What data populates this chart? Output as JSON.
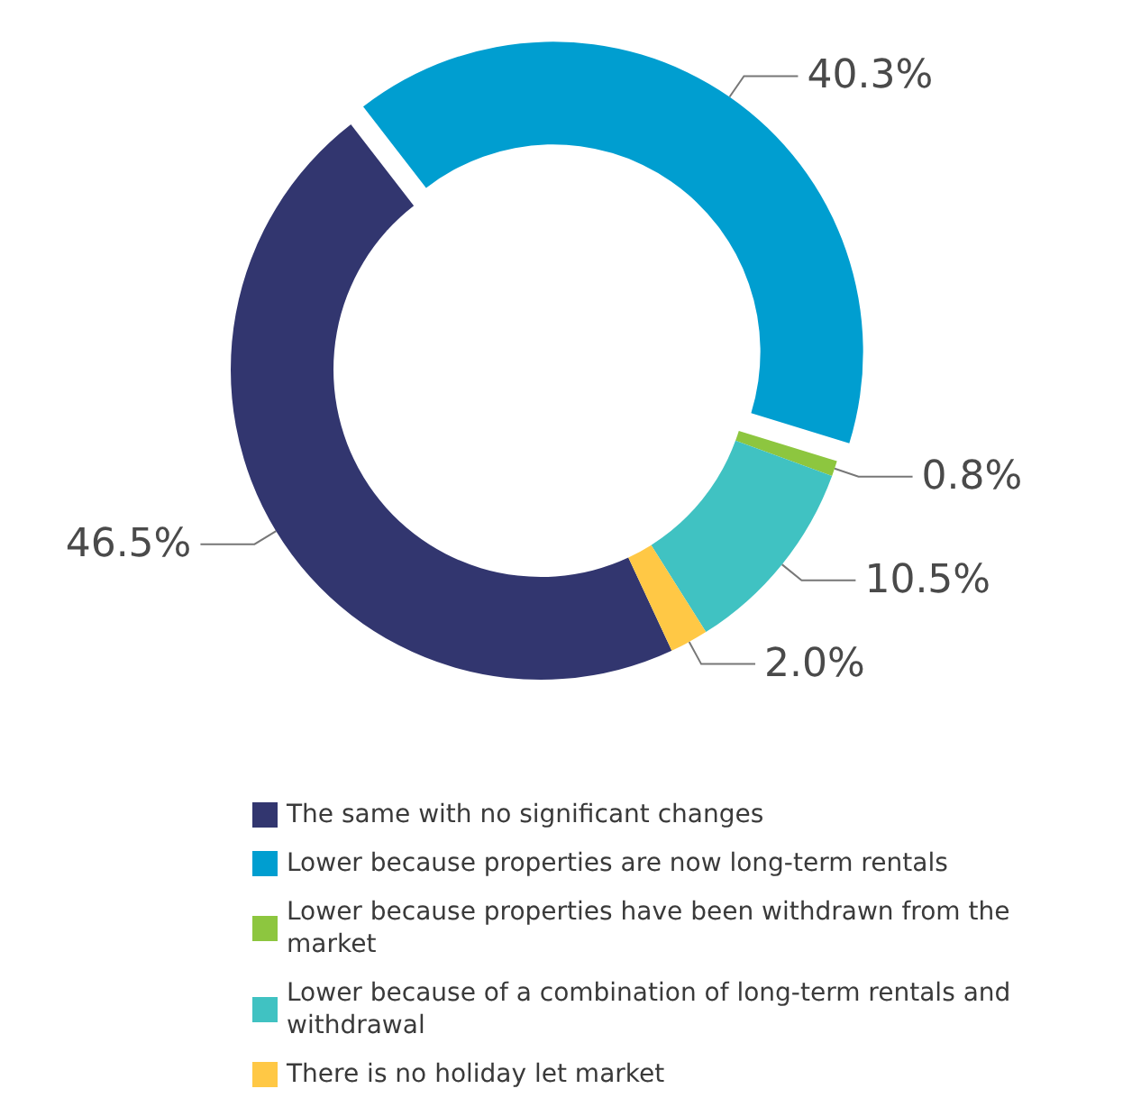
{
  "chart_data": {
    "type": "donut",
    "categories": [
      "The same with no significant changes",
      "Lower because properties are now long-term rentals",
      "Lower because properties have been withdrawn from the market",
      "Lower because of a combination of long-term rentals and withdrawal",
      "There is no holiday let market"
    ],
    "values": [
      46.5,
      40.3,
      0.8,
      10.5,
      2.0
    ],
    "value_labels": [
      "46.5%",
      "40.3%",
      "0.8%",
      "10.5%",
      "2.0%"
    ],
    "colors": [
      "#32366f",
      "#009ed0",
      "#8dc63f",
      "#40c2c2",
      "#ffc845"
    ],
    "legend": "bottom"
  }
}
